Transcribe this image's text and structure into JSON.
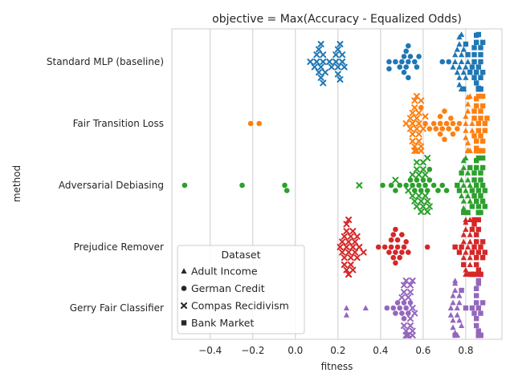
{
  "chart_data": {
    "type": "scatter",
    "title": "objective = Max(Accuracy - Equalized Odds)",
    "xlabel": "fitness",
    "ylabel": "method",
    "xlim": [
      -0.58,
      0.97
    ],
    "xticks": [
      -0.4,
      -0.2,
      0.0,
      0.2,
      0.4,
      0.6,
      0.8
    ],
    "xtick_labels": [
      "−0.4",
      "−0.2",
      "0.0",
      "0.2",
      "0.4",
      "0.6",
      "0.8"
    ],
    "grid": "vertical",
    "legend": {
      "title": "Dataset",
      "placement": "lower-left",
      "entries": [
        {
          "label": "Adult Income",
          "marker": "triangle"
        },
        {
          "label": "German Credit",
          "marker": "circle"
        },
        {
          "label": "Compas Recidivism",
          "marker": "x"
        },
        {
          "label": "Bank Market",
          "marker": "square"
        }
      ]
    },
    "categories": [
      "Standard MLP (baseline)",
      "Fair Transition Loss",
      "Adversarial Debiasing",
      "Prejudice Remover",
      "Gerry Fair Classifier"
    ],
    "colors": [
      "#1f77b4",
      "#ff7f0e",
      "#2ca02c",
      "#d62728",
      "#9467bd"
    ],
    "groups": [
      {
        "method": "Standard MLP (baseline)",
        "datasets": {
          "Adult Income": [
            0.79,
            0.79,
            0.78,
            0.79,
            0.78,
            0.79,
            0.78,
            0.78,
            0.77,
            0.77,
            0.76,
            0.76,
            0.75,
            0.75,
            0.74,
            0.78,
            0.79,
            0.78,
            0.79,
            0.8,
            0.8,
            0.81,
            0.78,
            0.77,
            0.79,
            0.78,
            0.77,
            0.78,
            0.78,
            0.77
          ],
          "German Credit": [
            0.53,
            0.51,
            0.47,
            0.44,
            0.44,
            0.49,
            0.51,
            0.52,
            0.54,
            0.56,
            0.58,
            0.57,
            0.53,
            0.5,
            0.52,
            0.53,
            0.69,
            0.72
          ],
          "Compas Recidivism": [
            0.13,
            0.12,
            0.12,
            0.11,
            0.12,
            0.1,
            0.09,
            0.1,
            0.11,
            0.13,
            0.13,
            0.14,
            0.07,
            0.16,
            0.17,
            0.19,
            0.2,
            0.21,
            0.22,
            0.23,
            0.21,
            0.2,
            0.2,
            0.22,
            0.19
          ],
          "Bank Market": [
            0.87,
            0.87,
            0.86,
            0.87,
            0.86,
            0.86,
            0.85,
            0.84,
            0.84,
            0.85,
            0.86,
            0.86,
            0.87,
            0.88,
            0.88,
            0.8,
            0.79,
            0.81,
            0.82,
            0.83,
            0.84,
            0.84,
            0.85,
            0.86,
            0.85,
            0.86,
            0.86,
            0.87,
            0.87,
            0.87
          ]
        }
      },
      {
        "method": "Fair Transition Loss",
        "datasets": {
          "Adult Income": [
            0.82,
            0.81,
            0.82,
            0.81,
            0.8,
            0.83,
            0.81,
            0.8,
            0.82,
            0.81,
            0.82,
            0.8,
            0.81,
            0.82,
            0.83,
            0.82,
            0.81,
            0.8,
            0.82,
            0.81
          ],
          "German Credit": [
            -0.21,
            -0.17,
            0.59,
            0.61,
            0.63,
            0.65,
            0.66,
            0.68,
            0.68,
            0.69,
            0.7,
            0.71,
            0.72,
            0.73,
            0.74,
            0.74,
            0.76,
            0.77,
            0.7,
            0.68
          ],
          "Compas Recidivism": [
            0.57,
            0.59,
            0.55,
            0.58,
            0.57,
            0.56,
            0.55,
            0.58,
            0.59,
            0.6,
            0.56,
            0.57,
            0.54,
            0.52,
            0.55,
            0.58,
            0.59,
            0.61,
            0.57,
            0.56,
            0.55,
            0.58,
            0.57,
            0.56,
            0.54
          ],
          "Bank Market": [
            0.86,
            0.85,
            0.87,
            0.88,
            0.84,
            0.85,
            0.86,
            0.87,
            0.88,
            0.89,
            0.9,
            0.86,
            0.85,
            0.84,
            0.87,
            0.88,
            0.85,
            0.86,
            0.87,
            0.88,
            0.84,
            0.86,
            0.87,
            0.89,
            0.88,
            0.86,
            0.85,
            0.87
          ]
        }
      },
      {
        "method": "Adversarial Debiasing",
        "datasets": {
          "Adult Income": [
            0.8,
            0.8,
            0.79,
            0.81,
            0.8,
            0.79,
            0.81,
            0.78,
            0.8,
            0.79,
            0.82,
            0.8,
            0.79,
            0.81,
            0.8,
            0.78,
            0.82,
            0.79,
            0.81,
            0.8
          ],
          "German Credit": [
            -0.52,
            -0.25,
            -0.05,
            -0.04,
            0.41,
            0.45,
            0.47,
            0.49,
            0.52,
            0.55,
            0.57,
            0.58,
            0.6,
            0.62,
            0.63,
            0.65,
            0.67,
            0.69,
            0.71,
            0.63,
            0.61,
            0.59,
            0.56,
            0.54
          ],
          "Compas Recidivism": [
            0.3,
            0.47,
            0.53,
            0.55,
            0.57,
            0.58,
            0.6,
            0.61,
            0.62,
            0.56,
            0.57,
            0.59,
            0.6,
            0.62,
            0.63,
            0.58,
            0.61,
            0.59,
            0.6,
            0.62,
            0.57,
            0.55
          ],
          "Bank Market": [
            0.88,
            0.87,
            0.86,
            0.85,
            0.87,
            0.86,
            0.84,
            0.88,
            0.89,
            0.86,
            0.85,
            0.84,
            0.83,
            0.87,
            0.88,
            0.89,
            0.78,
            0.76,
            0.77,
            0.79,
            0.81,
            0.83,
            0.85,
            0.86,
            0.86,
            0.85,
            0.84,
            0.82,
            0.87,
            0.88
          ]
        }
      },
      {
        "method": "Prejudice Remover",
        "datasets": {
          "Adult Income": [
            0.81,
            0.8,
            0.81,
            0.8,
            0.81,
            0.82,
            0.8,
            0.79,
            0.81,
            0.82,
            0.8,
            0.81,
            0.8,
            0.79,
            0.82,
            0.81,
            0.8,
            0.81,
            0.8,
            0.82,
            0.79,
            0.81,
            0.8,
            0.81,
            0.82
          ],
          "German Credit": [
            0.39,
            0.42,
            0.44,
            0.46,
            0.47,
            0.47,
            0.45,
            0.46,
            0.48,
            0.5,
            0.5,
            0.52,
            0.53,
            0.51,
            0.49,
            0.47,
            0.45,
            0.62,
            0.48
          ],
          "Compas Recidivism": [
            0.25,
            0.26,
            0.24,
            0.27,
            0.23,
            0.25,
            0.28,
            0.22,
            0.26,
            0.24,
            0.25,
            0.27,
            0.23,
            0.29,
            0.21,
            0.22,
            0.24,
            0.26,
            0.28,
            0.25,
            0.23,
            0.27,
            0.24,
            0.29,
            0.3,
            0.32,
            0.25
          ],
          "Bank Market": [
            0.83,
            0.84,
            0.85,
            0.86,
            0.87,
            0.88,
            0.89,
            0.84,
            0.85,
            0.86,
            0.87,
            0.88,
            0.83,
            0.84,
            0.85,
            0.86,
            0.87,
            0.75,
            0.77,
            0.78,
            0.79,
            0.82,
            0.83,
            0.84,
            0.85,
            0.86,
            0.87,
            0.86,
            0.83,
            0.84
          ]
        }
      },
      {
        "method": "Gerry Fair Classifier",
        "datasets": {
          "Adult Income": [
            0.24,
            0.24,
            0.33,
            0.76,
            0.76,
            0.76,
            0.76,
            0.75,
            0.75,
            0.75,
            0.74,
            0.74,
            0.74,
            0.73,
            0.73,
            0.75,
            0.76,
            0.77,
            0.77,
            0.78,
            0.76,
            0.75,
            0.74,
            0.76,
            0.77
          ],
          "German Credit": [
            0.43,
            0.46,
            0.48,
            0.51,
            0.52,
            0.54,
            0.53,
            0.51,
            0.5,
            0.47,
            0.49
          ],
          "Compas Recidivism": [
            0.51,
            0.53,
            0.52,
            0.55,
            0.54,
            0.53,
            0.52,
            0.55,
            0.54,
            0.51,
            0.5,
            0.53,
            0.56,
            0.52,
            0.54,
            0.55,
            0.53,
            0.51,
            0.52,
            0.54,
            0.53,
            0.55
          ],
          "Bank Market": [
            0.87,
            0.87,
            0.86,
            0.86,
            0.86,
            0.86,
            0.86,
            0.85,
            0.85,
            0.85,
            0.86,
            0.87,
            0.88,
            0.86,
            0.85,
            0.86,
            0.84,
            0.83,
            0.8,
            0.78,
            0.75,
            0.86,
            0.85,
            0.86,
            0.87,
            0.86,
            0.86,
            0.87,
            0.87,
            0.86
          ]
        }
      }
    ]
  }
}
